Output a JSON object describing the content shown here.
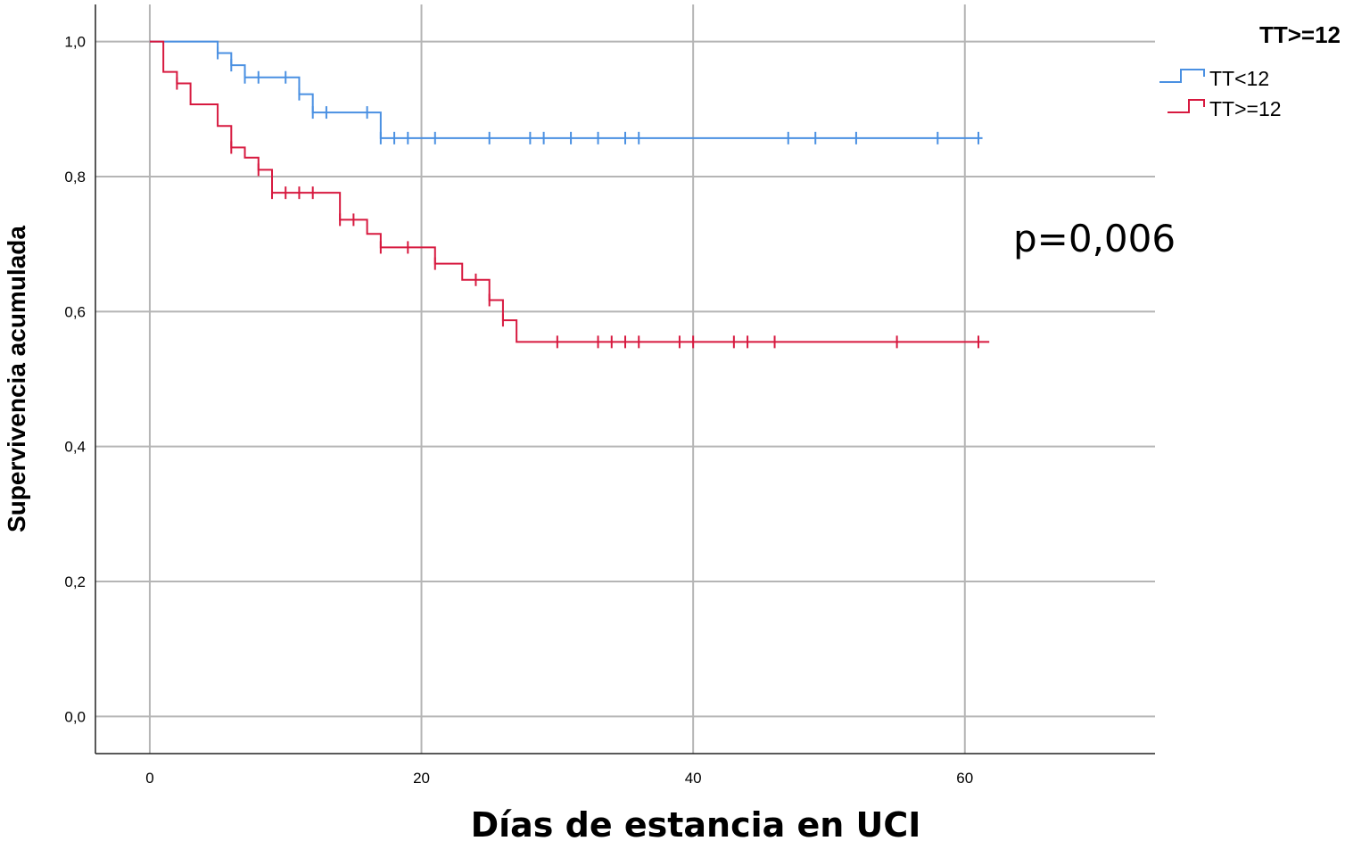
{
  "chart_data": {
    "type": "line",
    "subtype": "kaplan-meier-step",
    "xlabel": "Días de estancia en UCI",
    "ylabel": "Supervivencia acumulada",
    "xlim": [
      -4,
      74
    ],
    "ylim": [
      -0.055,
      1.055
    ],
    "x_ticks": [
      0,
      20,
      40,
      60
    ],
    "x_tick_labels": [
      "0",
      "20",
      "40",
      "60"
    ],
    "y_ticks": [
      0.0,
      0.2,
      0.4,
      0.6,
      0.8,
      1.0
    ],
    "y_tick_labels": [
      "0,0",
      "0,2",
      "0,4",
      "0,6",
      "0,8",
      "1,0"
    ],
    "grid": true,
    "legend_title": "TT>=12",
    "legend_position": "top-right",
    "annotation": "p=0,006",
    "series": [
      {
        "name": "TT<12",
        "color": "#4a90e2",
        "steps": [
          [
            0,
            1.0
          ],
          [
            5,
            0.983
          ],
          [
            6,
            0.965
          ],
          [
            7,
            0.947
          ],
          [
            11,
            0.922
          ],
          [
            12,
            0.895
          ],
          [
            17,
            0.857
          ],
          [
            61.3,
            0.857
          ]
        ],
        "censored": [
          [
            5,
            0.983
          ],
          [
            6,
            0.965
          ],
          [
            7,
            0.947
          ],
          [
            8,
            0.947
          ],
          [
            10,
            0.947
          ],
          [
            11,
            0.922
          ],
          [
            12,
            0.895
          ],
          [
            13,
            0.895
          ],
          [
            16,
            0.895
          ],
          [
            17,
            0.857
          ],
          [
            18,
            0.857
          ],
          [
            19,
            0.857
          ],
          [
            21,
            0.857
          ],
          [
            25,
            0.857
          ],
          [
            28,
            0.857
          ],
          [
            29,
            0.857
          ],
          [
            31,
            0.857
          ],
          [
            33,
            0.857
          ],
          [
            35,
            0.857
          ],
          [
            36,
            0.857
          ],
          [
            47,
            0.857
          ],
          [
            49,
            0.857
          ],
          [
            52,
            0.857
          ],
          [
            58,
            0.857
          ],
          [
            61,
            0.857
          ]
        ]
      },
      {
        "name": "TT>=12",
        "color": "#d7193f",
        "steps": [
          [
            0,
            1.0
          ],
          [
            1,
            0.955
          ],
          [
            2,
            0.938
          ],
          [
            3,
            0.907
          ],
          [
            5,
            0.875
          ],
          [
            6,
            0.843
          ],
          [
            7,
            0.828
          ],
          [
            8,
            0.81
          ],
          [
            9,
            0.776
          ],
          [
            14,
            0.736
          ],
          [
            16,
            0.715
          ],
          [
            17,
            0.695
          ],
          [
            21,
            0.671
          ],
          [
            23,
            0.647
          ],
          [
            25,
            0.617
          ],
          [
            26,
            0.587
          ],
          [
            27,
            0.555
          ],
          [
            61.8,
            0.555
          ]
        ],
        "censored": [
          [
            2,
            0.938
          ],
          [
            6,
            0.843
          ],
          [
            8,
            0.81
          ],
          [
            9,
            0.776
          ],
          [
            10,
            0.776
          ],
          [
            11,
            0.776
          ],
          [
            12,
            0.776
          ],
          [
            14,
            0.736
          ],
          [
            15,
            0.736
          ],
          [
            17,
            0.695
          ],
          [
            19,
            0.695
          ],
          [
            21,
            0.671
          ],
          [
            24,
            0.647
          ],
          [
            25,
            0.617
          ],
          [
            26,
            0.587
          ],
          [
            30,
            0.555
          ],
          [
            33,
            0.555
          ],
          [
            34,
            0.555
          ],
          [
            35,
            0.555
          ],
          [
            36,
            0.555
          ],
          [
            39,
            0.555
          ],
          [
            40,
            0.555
          ],
          [
            43,
            0.555
          ],
          [
            44,
            0.555
          ],
          [
            46,
            0.555
          ],
          [
            55,
            0.555
          ],
          [
            61,
            0.555
          ]
        ]
      }
    ]
  }
}
